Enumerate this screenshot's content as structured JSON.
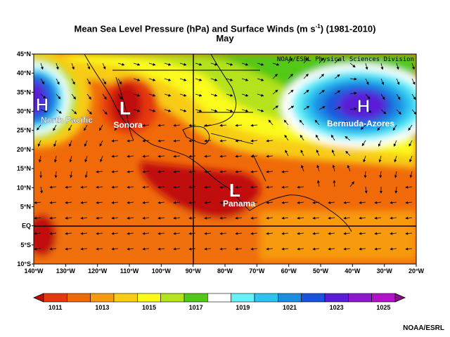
{
  "title": {
    "prefix": "Mean Sea Level Pressure (hPa) and Surface Winds (m s",
    "sup": "-1",
    "suffix": ") (1981-2010)"
  },
  "subtitle": "May",
  "source_label": "NOAA/ESRL Physical Sciences Division",
  "credit": "NOAA/ESRL",
  "map": {
    "lat_labels": [
      "45°N",
      "40°N",
      "35°N",
      "30°N",
      "25°N",
      "20°N",
      "15°N",
      "10°N",
      "5°N",
      "EQ",
      "5°S",
      "10°S"
    ],
    "lon_labels": [
      "140°W",
      "130°W",
      "120°W",
      "110°W",
      "100°W",
      "90°W",
      "80°W",
      "70°W",
      "60°W",
      "50°W",
      "40°W",
      "30°W",
      "20°W"
    ]
  },
  "pressure_systems": [
    {
      "letter": "H",
      "name": "North Pacific",
      "type": "high"
    },
    {
      "letter": "L",
      "name": "Sonora",
      "type": "low"
    },
    {
      "letter": "L",
      "name": "Panama",
      "type": "low"
    },
    {
      "letter": "H",
      "name": "Bermuda-Azores",
      "type": "high"
    }
  ],
  "colorbar": {
    "labels": [
      "1011",
      "1013",
      "1015",
      "1017",
      "1019",
      "1021",
      "1023",
      "1025"
    ],
    "colors": [
      "#c00a0a",
      "#e4380f",
      "#f06a0a",
      "#f89a10",
      "#f8cc14",
      "#fafa1a",
      "#b4e21c",
      "#52c818",
      "#ffffff",
      "#66f0f8",
      "#2ec4f0",
      "#1c8ee2",
      "#1a54dc",
      "#5a1ed6",
      "#8c1acc",
      "#b412c8",
      "#8a0e8a"
    ]
  },
  "colors": {
    "high_core": "#5a1ed6",
    "low_core": "#c00a0a",
    "ocean_base": "#f06a0a"
  },
  "icons": {
    "wind_vector": "wind-arrow-icon"
  }
}
